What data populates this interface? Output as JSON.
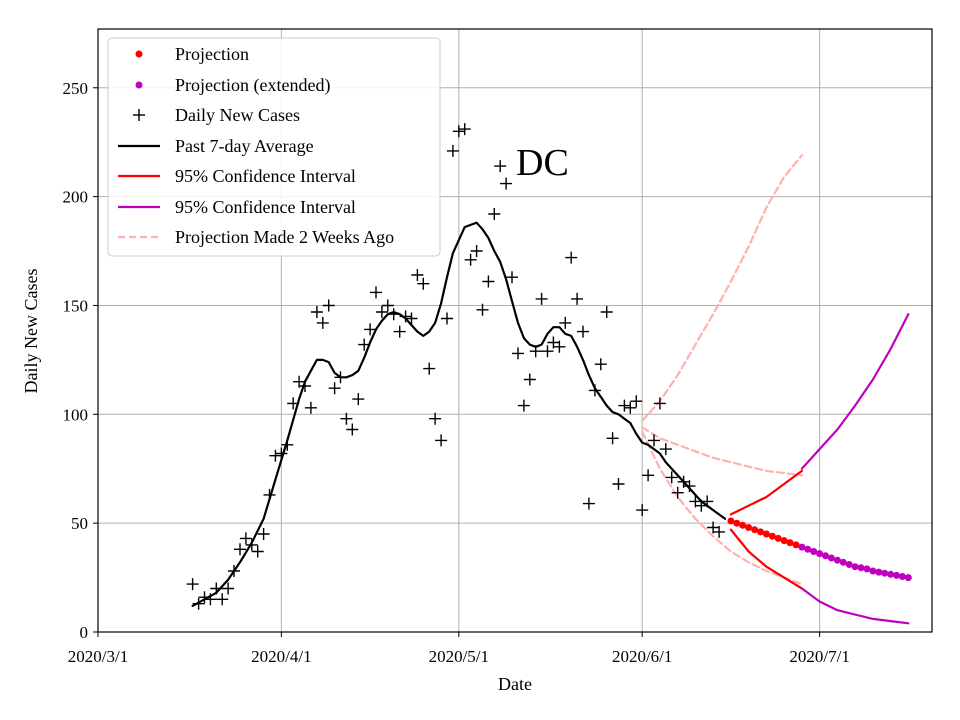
{
  "chart_data": {
    "type": "line",
    "title": "",
    "annotation": "DC",
    "xlabel": "Date",
    "ylabel": "Daily New Cases",
    "x_tick_labels": [
      "2020/3/1",
      "2020/4/1",
      "2020/5/1",
      "2020/6/1",
      "2020/7/1"
    ],
    "x_tick_days": [
      0,
      31,
      61,
      92,
      122
    ],
    "y_ticks": [
      0,
      50,
      100,
      150,
      200,
      250
    ],
    "xlim": [
      0,
      141
    ],
    "ylim": [
      0,
      277
    ],
    "grid": true,
    "legend_position": "top-left",
    "legend": {
      "projection": "Projection",
      "projection_ext": "Projection (extended)",
      "daily": "Daily New Cases",
      "avg": "Past 7-day Average",
      "ci_red": "95% Confidence Interval",
      "ci_purple": "95% Confidence Interval",
      "old": "Projection Made 2 Weeks Ago"
    },
    "colors": {
      "projection": "#ff0000",
      "projection_ext": "#bf00bf",
      "daily": "#000000",
      "avg": "#000000",
      "ci_red": "#ff0000",
      "ci_purple": "#bf00bf",
      "old": "#ffb0b0",
      "grid": "#b0b0b0"
    },
    "series": {
      "daily_new_cases": [
        [
          16,
          22
        ],
        [
          17,
          13
        ],
        [
          18,
          16
        ],
        [
          19,
          15
        ],
        [
          20,
          20
        ],
        [
          21,
          15
        ],
        [
          22,
          20
        ],
        [
          23,
          28
        ],
        [
          24,
          38
        ],
        [
          25,
          43
        ],
        [
          26,
          40
        ],
        [
          27,
          37
        ],
        [
          28,
          45
        ],
        [
          29,
          63
        ],
        [
          30,
          81
        ],
        [
          31,
          82
        ],
        [
          32,
          86
        ],
        [
          33,
          105
        ],
        [
          34,
          115
        ],
        [
          35,
          113
        ],
        [
          36,
          103
        ],
        [
          37,
          147
        ],
        [
          38,
          142
        ],
        [
          39,
          150
        ],
        [
          40,
          112
        ],
        [
          41,
          117
        ],
        [
          42,
          98
        ],
        [
          43,
          93
        ],
        [
          44,
          107
        ],
        [
          45,
          132
        ],
        [
          46,
          139
        ],
        [
          47,
          156
        ],
        [
          48,
          147
        ],
        [
          49,
          150
        ],
        [
          50,
          146
        ],
        [
          51,
          138
        ],
        [
          52,
          145
        ],
        [
          53,
          144
        ],
        [
          54,
          164
        ],
        [
          55,
          160
        ],
        [
          56,
          121
        ],
        [
          57,
          98
        ],
        [
          58,
          88
        ],
        [
          59,
          144
        ],
        [
          60,
          221
        ],
        [
          61,
          230
        ],
        [
          62,
          231
        ],
        [
          63,
          171
        ],
        [
          64,
          175
        ],
        [
          65,
          148
        ],
        [
          66,
          161
        ],
        [
          67,
          192
        ],
        [
          68,
          214
        ],
        [
          69,
          206
        ],
        [
          70,
          163
        ],
        [
          71,
          128
        ],
        [
          72,
          104
        ],
        [
          73,
          116
        ],
        [
          74,
          129
        ],
        [
          75,
          153
        ],
        [
          76,
          129
        ],
        [
          77,
          133
        ],
        [
          78,
          131
        ],
        [
          79,
          142
        ],
        [
          80,
          172
        ],
        [
          81,
          153
        ],
        [
          82,
          138
        ],
        [
          83,
          59
        ],
        [
          84,
          111
        ],
        [
          85,
          123
        ],
        [
          86,
          147
        ],
        [
          87,
          89
        ],
        [
          88,
          68
        ],
        [
          89,
          104
        ],
        [
          90,
          103
        ],
        [
          91,
          106
        ],
        [
          92,
          56
        ],
        [
          93,
          72
        ],
        [
          94,
          88
        ],
        [
          95,
          105
        ],
        [
          96,
          84
        ],
        [
          97,
          71
        ],
        [
          98,
          64
        ],
        [
          99,
          69
        ],
        [
          100,
          67
        ],
        [
          101,
          60
        ],
        [
          102,
          58
        ],
        [
          103,
          60
        ],
        [
          104,
          48
        ],
        [
          105,
          46
        ]
      ],
      "past_7day_average": [
        [
          16,
          12
        ],
        [
          18,
          15
        ],
        [
          20,
          18
        ],
        [
          22,
          24
        ],
        [
          24,
          32
        ],
        [
          26,
          41
        ],
        [
          28,
          52
        ],
        [
          30,
          70
        ],
        [
          32,
          88
        ],
        [
          34,
          107
        ],
        [
          35,
          115
        ],
        [
          36,
          120
        ],
        [
          37,
          125
        ],
        [
          38,
          125
        ],
        [
          39,
          124
        ],
        [
          40,
          119
        ],
        [
          41,
          117
        ],
        [
          42,
          117
        ],
        [
          43,
          118
        ],
        [
          44,
          120
        ],
        [
          45,
          126
        ],
        [
          46,
          133
        ],
        [
          47,
          139
        ],
        [
          48,
          143
        ],
        [
          49,
          146
        ],
        [
          50,
          147
        ],
        [
          51,
          146
        ],
        [
          52,
          144
        ],
        [
          53,
          141
        ],
        [
          54,
          138
        ],
        [
          55,
          136
        ],
        [
          56,
          138
        ],
        [
          57,
          142
        ],
        [
          58,
          151
        ],
        [
          59,
          163
        ],
        [
          60,
          174
        ],
        [
          61,
          180
        ],
        [
          62,
          186
        ],
        [
          63,
          187
        ],
        [
          64,
          188
        ],
        [
          65,
          185
        ],
        [
          66,
          181
        ],
        [
          67,
          175
        ],
        [
          68,
          170
        ],
        [
          69,
          162
        ],
        [
          70,
          152
        ],
        [
          71,
          142
        ],
        [
          72,
          135
        ],
        [
          73,
          132
        ],
        [
          74,
          131
        ],
        [
          75,
          132
        ],
        [
          76,
          137
        ],
        [
          77,
          140
        ],
        [
          78,
          140
        ],
        [
          79,
          137
        ],
        [
          80,
          136
        ],
        [
          81,
          131
        ],
        [
          82,
          125
        ],
        [
          83,
          118
        ],
        [
          84,
          112
        ],
        [
          85,
          108
        ],
        [
          86,
          104
        ],
        [
          87,
          101
        ],
        [
          88,
          100
        ],
        [
          89,
          98
        ],
        [
          90,
          96
        ],
        [
          91,
          91
        ],
        [
          92,
          87
        ],
        [
          93,
          86
        ],
        [
          94,
          84
        ],
        [
          95,
          82
        ],
        [
          96,
          78
        ],
        [
          97,
          75
        ],
        [
          98,
          72
        ],
        [
          99,
          69
        ],
        [
          100,
          66
        ],
        [
          101,
          63
        ],
        [
          102,
          60
        ],
        [
          103,
          58
        ],
        [
          104,
          56
        ],
        [
          105,
          54
        ],
        [
          106,
          52
        ]
      ],
      "projection_red": [
        [
          107,
          51
        ],
        [
          108,
          50
        ],
        [
          109,
          49
        ],
        [
          110,
          48
        ],
        [
          111,
          47
        ],
        [
          112,
          46
        ],
        [
          113,
          45
        ],
        [
          114,
          44
        ],
        [
          115,
          43
        ],
        [
          116,
          42
        ],
        [
          117,
          41
        ],
        [
          118,
          40
        ]
      ],
      "projection_extended": [
        [
          119,
          39
        ],
        [
          120,
          38
        ],
        [
          121,
          37
        ],
        [
          122,
          36
        ],
        [
          123,
          35
        ],
        [
          124,
          34
        ],
        [
          125,
          33
        ],
        [
          126,
          32
        ],
        [
          127,
          31
        ],
        [
          128,
          30
        ],
        [
          129,
          29.5
        ],
        [
          130,
          29
        ],
        [
          131,
          28
        ],
        [
          132,
          27.5
        ],
        [
          133,
          27
        ],
        [
          134,
          26.5
        ],
        [
          135,
          26
        ],
        [
          136,
          25.5
        ],
        [
          137,
          25
        ]
      ],
      "ci_red_upper": [
        [
          107,
          54
        ],
        [
          110,
          58
        ],
        [
          113,
          62
        ],
        [
          116,
          68
        ],
        [
          119,
          74
        ]
      ],
      "ci_red_lower": [
        [
          107,
          47
        ],
        [
          110,
          37
        ],
        [
          113,
          30
        ],
        [
          116,
          25
        ],
        [
          119,
          20
        ]
      ],
      "ci_purple_upper": [
        [
          119,
          75
        ],
        [
          122,
          84
        ],
        [
          125,
          93
        ],
        [
          128,
          104
        ],
        [
          131,
          116
        ],
        [
          134,
          130
        ],
        [
          137,
          146
        ]
      ],
      "ci_purple_lower": [
        [
          119,
          20
        ],
        [
          122,
          14
        ],
        [
          125,
          10
        ],
        [
          128,
          8
        ],
        [
          131,
          6
        ],
        [
          134,
          5
        ],
        [
          137,
          4
        ]
      ],
      "old_projection_upper": [
        [
          92,
          97
        ],
        [
          95,
          106
        ],
        [
          98,
          118
        ],
        [
          101,
          132
        ],
        [
          104,
          146
        ],
        [
          107,
          161
        ],
        [
          110,
          177
        ],
        [
          113,
          195
        ],
        [
          116,
          209
        ],
        [
          119,
          219
        ]
      ],
      "old_projection_center": [
        [
          92,
          94
        ],
        [
          95,
          89
        ],
        [
          98,
          86
        ],
        [
          101,
          83
        ],
        [
          104,
          80
        ],
        [
          107,
          78
        ],
        [
          110,
          76
        ],
        [
          113,
          74
        ],
        [
          116,
          73
        ],
        [
          119,
          72
        ]
      ],
      "old_projection_lower": [
        [
          92,
          92
        ],
        [
          95,
          75
        ],
        [
          98,
          62
        ],
        [
          101,
          52
        ],
        [
          104,
          44
        ],
        [
          107,
          37
        ],
        [
          110,
          32
        ],
        [
          113,
          28
        ],
        [
          116,
          25
        ],
        [
          119,
          22
        ]
      ]
    }
  }
}
